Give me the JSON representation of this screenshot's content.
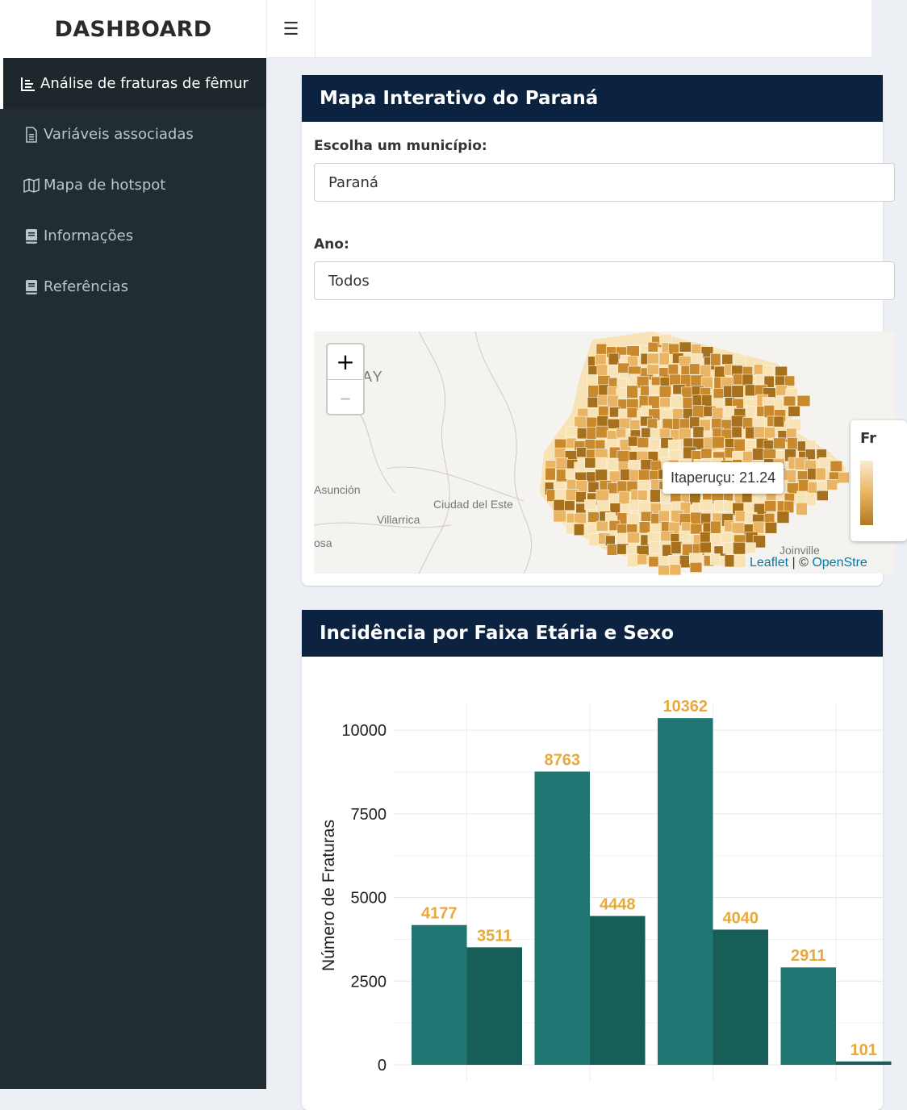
{
  "header": {
    "title": "DASHBOARD",
    "menu_icon": "☰"
  },
  "sidebar": {
    "items": [
      {
        "label": "Análise de fraturas de fêmur",
        "icon": "chart-icon",
        "active": true
      },
      {
        "label": "Variáveis associadas",
        "icon": "file-icon",
        "active": false
      },
      {
        "label": "Mapa de hotspot",
        "icon": "map-icon",
        "active": false
      },
      {
        "label": "Informações",
        "icon": "book-icon",
        "active": false
      },
      {
        "label": "Referências",
        "icon": "book-icon",
        "active": false
      }
    ]
  },
  "map_box": {
    "title": "Mapa Interativo do Paraná",
    "municipio_label": "Escolha um município:",
    "municipio_value": "Paraná",
    "ano_label": "Ano:",
    "ano_value": "Todos",
    "zoom_in": "+",
    "zoom_out": "–",
    "tooltip": "Itaperuçu: 21.24",
    "labels": {
      "asuncion": "Asunción",
      "ciudad_del_este": "Ciudad del Este",
      "villarrica": "Villarrica",
      "joinville": "Joinville",
      "paraguay": "AY",
      "rosa": "osa"
    },
    "attribution_leaflet": "Leaflet",
    "attribution_sep": " | © ",
    "attribution_osm": "OpenStre",
    "legend_title": "Fr",
    "colors": {
      "light": "#f7e3b5",
      "mid": "#e9b463",
      "dark": "#c98a2e",
      "darkest": "#a6701d"
    }
  },
  "chart_box": {
    "title": "Incidência por Faixa Etária e Sexo"
  },
  "chart_data": {
    "type": "bar",
    "ylabel": "Número de Fraturas",
    "yticks": [
      0,
      2500,
      5000,
      7500,
      10000
    ],
    "ylim": [
      0,
      10800
    ],
    "groups": [
      {
        "values": [
          4177,
          3511
        ]
      },
      {
        "values": [
          8763,
          4448
        ]
      },
      {
        "values": [
          10362,
          4040
        ]
      },
      {
        "values": [
          2911,
          101
        ]
      }
    ],
    "last_label_visible": "101",
    "series_colors": [
      "#1f7673",
      "#175e58"
    ],
    "label_color": "#e8a93a",
    "grid": true
  }
}
